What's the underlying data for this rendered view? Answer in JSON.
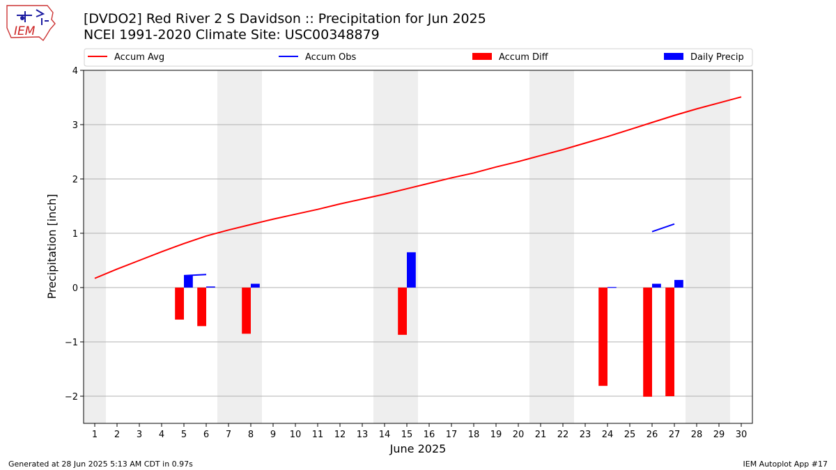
{
  "header": {
    "title": "[DVDO2] Red River 2 S Davidson :: Precipitation for Jun 2025",
    "subtitle": "NCEI 1991-2020 Climate Site: USC00348879",
    "logo_text": "IEM"
  },
  "footer": {
    "left": "Generated at 28 Jun 2025 5:13 AM CDT in 0.97s",
    "right": "IEM Autoplot App #17"
  },
  "colors": {
    "accum_avg": "#ff0000",
    "accum_obs": "#0000ff",
    "accum_diff": "#ff0000",
    "daily_precip": "#0000ff",
    "weekend_shade": "#eeeeee",
    "grid": "#b0b0b0"
  },
  "chart_data": {
    "type": "bar",
    "xlabel": "June 2025",
    "ylabel": "Precipitation [inch]",
    "xlim": [
      0.5,
      30.5
    ],
    "ylim": [
      -2.5,
      4
    ],
    "yticks": [
      -2,
      -1,
      0,
      1,
      2,
      3,
      4
    ],
    "ytick_labels": [
      "−2",
      "−1",
      "0",
      "1",
      "2",
      "3",
      "4"
    ],
    "days": [
      1,
      2,
      3,
      4,
      5,
      6,
      7,
      8,
      9,
      10,
      11,
      12,
      13,
      14,
      15,
      16,
      17,
      18,
      19,
      20,
      21,
      22,
      23,
      24,
      25,
      26,
      27,
      28,
      29,
      30
    ],
    "grid": "horizontal",
    "legend_position": "top",
    "weekend_shading": [
      [
        0.5,
        1.5
      ],
      [
        6.5,
        8.5
      ],
      [
        13.5,
        15.5
      ],
      [
        20.5,
        22.5
      ],
      [
        27.5,
        29.5
      ]
    ],
    "series": [
      {
        "name": "Accum Avg",
        "kind": "line",
        "x": [
          1,
          2,
          3,
          4,
          5,
          6,
          7,
          8,
          9,
          10,
          11,
          12,
          13,
          14,
          15,
          16,
          17,
          18,
          19,
          20,
          21,
          22,
          23,
          24,
          25,
          26,
          27,
          28,
          29,
          30
        ],
        "values": [
          0.17,
          0.34,
          0.5,
          0.66,
          0.81,
          0.95,
          1.06,
          1.16,
          1.26,
          1.35,
          1.44,
          1.54,
          1.63,
          1.72,
          1.82,
          1.92,
          2.02,
          2.11,
          2.22,
          2.32,
          2.43,
          2.54,
          2.66,
          2.78,
          2.91,
          3.04,
          3.17,
          3.29,
          3.4,
          3.51
        ]
      },
      {
        "name": "Accum Obs",
        "kind": "line",
        "segments": [
          {
            "x": [
              5,
              6
            ],
            "values": [
              0.22,
              0.24
            ]
          },
          {
            "x": [
              26,
              27
            ],
            "values": [
              1.03,
              1.17
            ]
          }
        ]
      },
      {
        "name": "Accum Diff",
        "kind": "bar",
        "x": [
          5,
          6,
          8,
          15,
          24,
          26,
          27
        ],
        "values": [
          -0.59,
          -0.71,
          -0.85,
          -0.87,
          -1.81,
          -2.01,
          -2.0
        ]
      },
      {
        "name": "Daily Precip",
        "kind": "bar",
        "x": [
          5,
          6,
          8,
          15,
          24,
          26,
          27
        ],
        "values": [
          0.22,
          0.02,
          0.07,
          0.65,
          0.01,
          0.07,
          0.14
        ]
      }
    ]
  }
}
